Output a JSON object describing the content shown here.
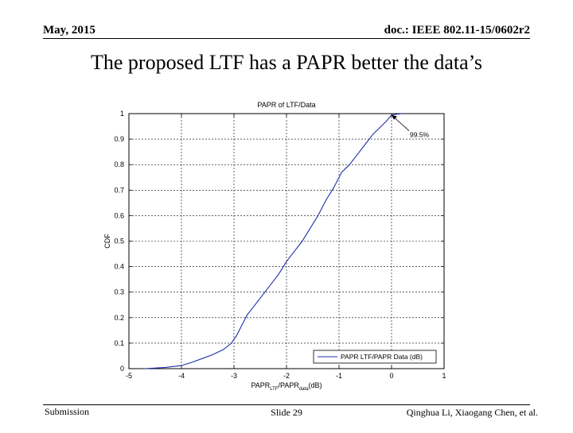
{
  "header": {
    "date": "May, 2015",
    "doc_id": "doc.: IEEE 802.11-15/0602r2"
  },
  "slide": {
    "title": "The proposed LTF has a PAPR better the data’s"
  },
  "footer": {
    "submission": "Submission",
    "slide_number": "Slide 29",
    "authors": "Qinghua Li, Xiaogang Chen, et al."
  },
  "chart_data": {
    "type": "line",
    "title": "PAPR of LTF/Data",
    "xlabel_main": "PAPR",
    "xlabel_sub1": "LTF",
    "xlabel_mid": "/PAPR",
    "xlabel_sub2": "data",
    "xlabel_unit": "(dB)",
    "ylabel": "CDF",
    "xlim": [
      -5,
      1
    ],
    "ylim": [
      0,
      1
    ],
    "xticks": [
      -5,
      -4,
      -3,
      -2,
      -1,
      0,
      1
    ],
    "xtick_labels": [
      "-5",
      "-4",
      "-3",
      "-2",
      "-1",
      "0",
      "1"
    ],
    "yticks": [
      0,
      0.1,
      0.2,
      0.3,
      0.4,
      0.5,
      0.6,
      0.7,
      0.8,
      0.9,
      1
    ],
    "ytick_labels": [
      "0",
      "0.1",
      "0.2",
      "0.3",
      "0.4",
      "0.5",
      "0.6",
      "0.7",
      "0.8",
      "0.9",
      "1"
    ],
    "grid": true,
    "legend_position": "bottom-right",
    "annotation": {
      "text": "99.5%",
      "x": 0,
      "y": 0.995
    },
    "series": [
      {
        "name": "PAPR LTF/PAPR Data (dB)",
        "color": "#1f2fa8",
        "x": [
          -4.7,
          -4.3,
          -4.0,
          -3.8,
          -3.6,
          -3.4,
          -3.2,
          -3.05,
          -2.95,
          -2.85,
          -2.75,
          -2.6,
          -2.45,
          -2.3,
          -2.15,
          -2.0,
          -1.85,
          -1.7,
          -1.55,
          -1.4,
          -1.25,
          -1.1,
          -0.95,
          -0.8,
          -0.65,
          -0.5,
          -0.35,
          -0.2,
          -0.1,
          0.0,
          0.2
        ],
        "y": [
          0.0,
          0.005,
          0.012,
          0.025,
          0.04,
          0.055,
          0.075,
          0.1,
          0.13,
          0.17,
          0.21,
          0.25,
          0.29,
          0.33,
          0.37,
          0.42,
          0.46,
          0.5,
          0.55,
          0.6,
          0.66,
          0.71,
          0.77,
          0.8,
          0.84,
          0.88,
          0.92,
          0.95,
          0.97,
          0.995,
          1.0
        ]
      }
    ]
  }
}
